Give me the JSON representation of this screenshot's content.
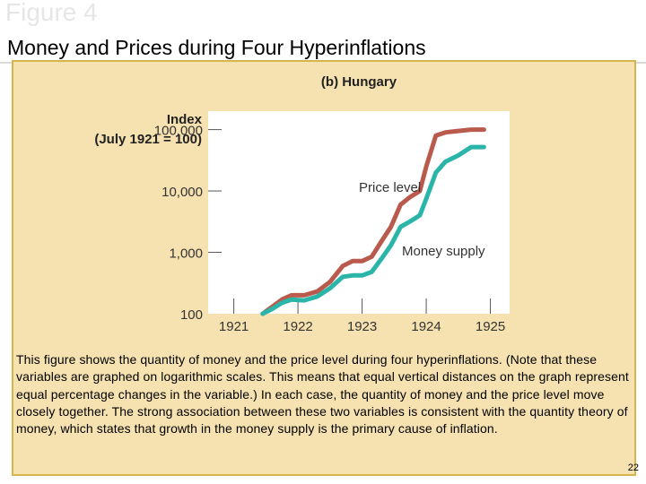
{
  "header": {
    "figure_label": "Figure 4",
    "title": "Money and Prices during Four Hyperinflations"
  },
  "chart_data": {
    "type": "line",
    "subtitle": "(b) Hungary",
    "ylabel_line1": "Index",
    "ylabel_line2": "(July 1921 = 100)",
    "y_scale": "log",
    "ylim": [
      100,
      200000
    ],
    "y_ticks": [
      {
        "value": 100,
        "label": "100"
      },
      {
        "value": 1000,
        "label": "1,000"
      },
      {
        "value": 10000,
        "label": "10,000"
      },
      {
        "value": 100000,
        "label": "100,000"
      }
    ],
    "xlim": [
      1920.6,
      1925.3
    ],
    "x_ticks": [
      {
        "value": 1921,
        "label": "1921"
      },
      {
        "value": 1922,
        "label": "1922"
      },
      {
        "value": 1923,
        "label": "1923"
      },
      {
        "value": 1924,
        "label": "1924"
      },
      {
        "value": 1925,
        "label": "1925"
      }
    ],
    "grid": false,
    "series": [
      {
        "name": "Price level",
        "color": "#b95a4c",
        "x": [
          1921.45,
          1921.6,
          1921.75,
          1921.9,
          1922.1,
          1922.3,
          1922.5,
          1922.7,
          1922.85,
          1923.0,
          1923.15,
          1923.3,
          1923.45,
          1923.6,
          1923.75,
          1923.9,
          1924.0,
          1924.15,
          1924.3,
          1924.5,
          1924.7,
          1924.9
        ],
        "values": [
          100,
          130,
          170,
          200,
          200,
          230,
          330,
          600,
          720,
          720,
          850,
          1500,
          2600,
          6000,
          8000,
          10000,
          25000,
          80000,
          90000,
          95000,
          100000,
          100000
        ]
      },
      {
        "name": "Money supply",
        "color": "#2ab5a8",
        "x": [
          1921.45,
          1921.6,
          1921.75,
          1921.9,
          1922.1,
          1922.3,
          1922.5,
          1922.7,
          1922.85,
          1923.0,
          1923.15,
          1923.3,
          1923.45,
          1923.6,
          1923.75,
          1923.9,
          1924.0,
          1924.15,
          1924.3,
          1924.5,
          1924.7,
          1924.9
        ],
        "values": [
          100,
          120,
          150,
          170,
          165,
          190,
          260,
          400,
          420,
          420,
          480,
          780,
          1300,
          2600,
          3200,
          4000,
          7500,
          20000,
          30000,
          38000,
          52000,
          52000
        ]
      }
    ],
    "annotations": [
      "Price level",
      "Money supply"
    ]
  },
  "caption": "This figure shows the quantity of money and the price level during four hyperinflations. (Note that these variables are graphed on logarithmic scales. This means that equal vertical distances on the graph represent equal percentage changes in the variable.) In each case, the quantity of money and the price level move closely together. The strong association between these two variables is consistent with the quantity theory of money, which states that growth in the money supply is the primary cause of inflation.",
  "page_number": "22"
}
